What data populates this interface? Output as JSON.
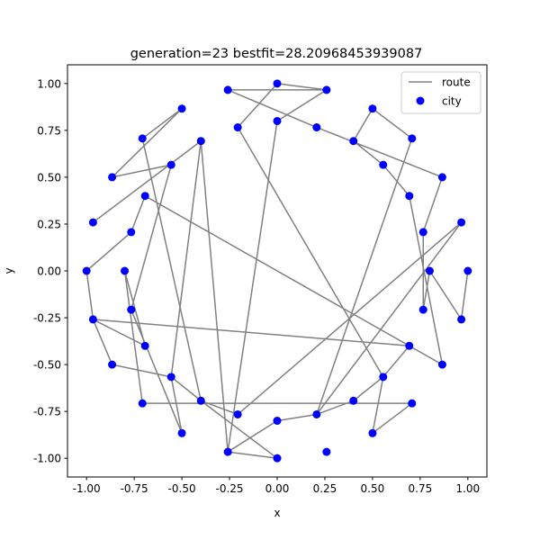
{
  "chart_data": {
    "type": "scatter",
    "title": "generation=23 bestfit=28.20968453939087",
    "xlabel": "x",
    "ylabel": "y",
    "xlim": [
      -1.1,
      1.1
    ],
    "ylim": [
      -1.1,
      1.1
    ],
    "x_ticks": [
      "-1.00",
      "-0.75",
      "-0.50",
      "-0.25",
      "0.00",
      "0.25",
      "0.50",
      "0.75",
      "1.00"
    ],
    "y_ticks": [
      "-1.00",
      "-0.75",
      "-0.50",
      "-0.25",
      "0.00",
      "0.25",
      "0.50",
      "0.75",
      "1.00"
    ],
    "x_tick_values": [
      -1,
      -0.75,
      -0.5,
      -0.25,
      0,
      0.25,
      0.5,
      0.75,
      1
    ],
    "y_tick_values": [
      -1,
      -0.75,
      -0.5,
      -0.25,
      0,
      0.25,
      0.5,
      0.75,
      1
    ],
    "grid": false,
    "legend": {
      "placement": "top-right",
      "entries": [
        "route",
        "city"
      ]
    },
    "colors": {
      "route": "#808080",
      "city": "#0000ff"
    },
    "series": [
      {
        "name": "city",
        "kind": "scatter",
        "points": [
          [
            0.0,
            1.0
          ],
          [
            0.259,
            0.966
          ],
          [
            0.5,
            0.866
          ],
          [
            0.707,
            0.707
          ],
          [
            0.866,
            0.5
          ],
          [
            0.966,
            0.259
          ],
          [
            1.0,
            0.0
          ],
          [
            0.966,
            -0.259
          ],
          [
            0.866,
            -0.5
          ],
          [
            0.707,
            -0.707
          ],
          [
            0.5,
            -0.866
          ],
          [
            0.259,
            -0.966
          ],
          [
            0.0,
            -1.0
          ],
          [
            -0.259,
            -0.966
          ],
          [
            -0.5,
            -0.866
          ],
          [
            -0.707,
            -0.707
          ],
          [
            -0.866,
            -0.5
          ],
          [
            -0.966,
            -0.259
          ],
          [
            -1.0,
            0.0
          ],
          [
            -0.966,
            0.259
          ],
          [
            -0.866,
            0.5
          ],
          [
            -0.707,
            0.707
          ],
          [
            -0.5,
            0.866
          ],
          [
            -0.259,
            0.966
          ],
          [
            0.0,
            0.8
          ],
          [
            0.207,
            0.766
          ],
          [
            0.4,
            0.693
          ],
          [
            0.556,
            0.566
          ],
          [
            0.693,
            0.4
          ],
          [
            0.766,
            0.207
          ],
          [
            0.8,
            0.0
          ],
          [
            0.766,
            -0.207
          ],
          [
            0.693,
            -0.4
          ],
          [
            0.556,
            -0.566
          ],
          [
            0.4,
            -0.693
          ],
          [
            0.207,
            -0.766
          ],
          [
            0.0,
            -0.8
          ],
          [
            -0.207,
            -0.766
          ],
          [
            -0.4,
            -0.693
          ],
          [
            -0.556,
            -0.566
          ],
          [
            -0.693,
            -0.4
          ],
          [
            -0.766,
            -0.207
          ],
          [
            -0.8,
            0.0
          ],
          [
            -0.766,
            0.207
          ],
          [
            -0.693,
            0.4
          ],
          [
            -0.556,
            0.566
          ],
          [
            -0.4,
            0.693
          ],
          [
            -0.207,
            0.766
          ]
        ]
      },
      {
        "name": "route",
        "kind": "line",
        "points": [
          [
            0.259,
            0.966
          ],
          [
            0.0,
            1.0
          ],
          [
            -0.207,
            0.766
          ],
          [
            0.556,
            -0.566
          ],
          [
            0.4,
            -0.693
          ],
          [
            0.207,
            -0.766
          ],
          [
            0.707,
            0.707
          ],
          [
            0.5,
            0.866
          ],
          [
            0.4,
            0.693
          ],
          [
            0.556,
            0.566
          ],
          [
            0.693,
            0.4
          ],
          [
            0.866,
            -0.5
          ],
          [
            -0.693,
            0.4
          ],
          [
            -0.766,
            0.207
          ],
          [
            -1.0,
            0.0
          ],
          [
            -0.966,
            -0.259
          ],
          [
            -0.693,
            -0.4
          ],
          [
            -0.8,
            0.0
          ],
          [
            -0.707,
            -0.707
          ],
          [
            0.707,
            -0.707
          ],
          [
            0.5,
            -0.866
          ],
          [
            0.556,
            -0.566
          ],
          [
            0.693,
            -0.4
          ],
          [
            -0.966,
            -0.259
          ],
          [
            -0.866,
            -0.5
          ],
          [
            -0.556,
            -0.566
          ],
          [
            -0.5,
            -0.866
          ],
          [
            -0.766,
            -0.207
          ],
          [
            -0.556,
            0.566
          ],
          [
            -0.866,
            0.5
          ],
          [
            -0.5,
            0.866
          ],
          [
            -0.707,
            0.707
          ],
          [
            -0.4,
            -0.693
          ],
          [
            0.0,
            -1.0
          ],
          [
            -0.259,
            -0.966
          ],
          [
            0.0,
            -0.8
          ],
          [
            0.207,
            -0.766
          ],
          [
            0.966,
            0.259
          ],
          [
            -0.207,
            -0.766
          ],
          [
            -0.4,
            -0.693
          ],
          [
            -0.556,
            -0.566
          ],
          [
            -0.4,
            0.693
          ],
          [
            -0.966,
            0.259
          ],
          [
            -0.4,
            0.693
          ],
          [
            -0.259,
            -0.966
          ],
          [
            0.0,
            0.8
          ],
          [
            0.259,
            0.966
          ],
          [
            -0.259,
            0.966
          ],
          [
            0.207,
            0.766
          ],
          [
            0.866,
            0.5
          ],
          [
            0.766,
            0.207
          ],
          [
            0.766,
            -0.207
          ],
          [
            0.8,
            0.0
          ],
          [
            0.966,
            -0.259
          ],
          [
            1.0,
            0.0
          ]
        ]
      }
    ]
  }
}
